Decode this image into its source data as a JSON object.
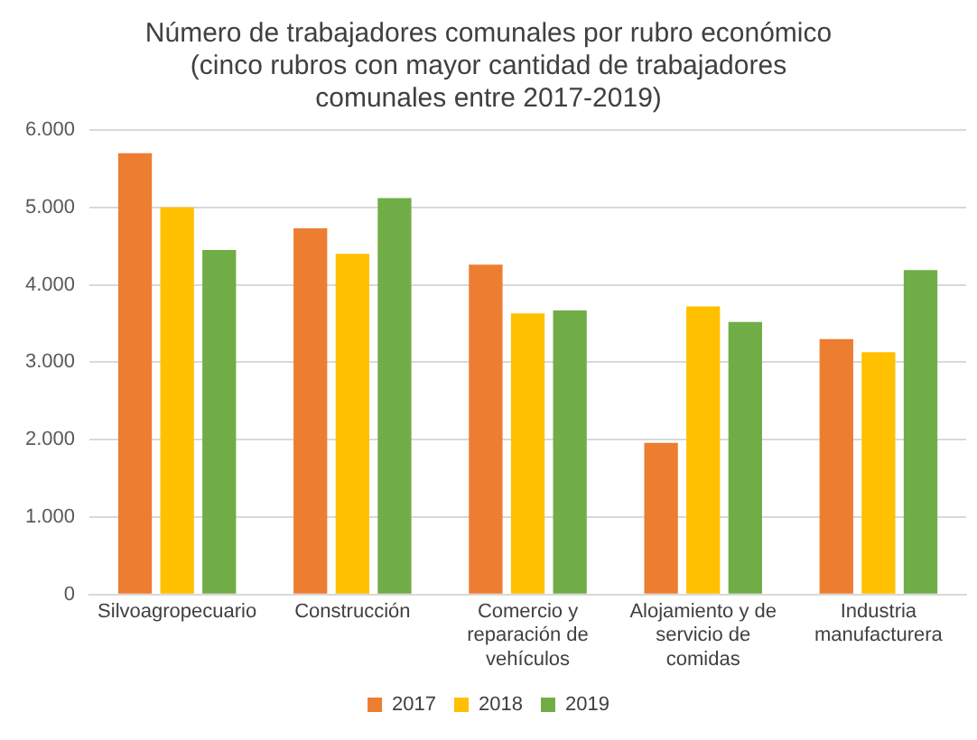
{
  "chart_data": {
    "type": "bar",
    "title": "Número de trabajadores comunales por rubro económico (cinco rubros con mayor cantidad de trabajadores comunales entre 2017-2019)",
    "categories": [
      "Silvoagropecuario",
      "Construcción",
      "Comercio y reparación de vehículos",
      "Alojamiento y de servicio de comidas",
      "Industria manufacturera"
    ],
    "series": [
      {
        "name": "2017",
        "color": "#ed7d31",
        "values": [
          5700,
          4730,
          4260,
          1960,
          3300
        ]
      },
      {
        "name": "2018",
        "color": "#ffc000",
        "values": [
          5000,
          4400,
          3630,
          3720,
          3130
        ]
      },
      {
        "name": "2019",
        "color": "#70ad47",
        "values": [
          4450,
          5120,
          3670,
          3520,
          4190
        ]
      }
    ],
    "ylim": [
      0,
      6000
    ],
    "yticks": [
      {
        "value": 0,
        "label": "0"
      },
      {
        "value": 1000,
        "label": "1.000"
      },
      {
        "value": 2000,
        "label": "2.000"
      },
      {
        "value": 3000,
        "label": "3.000"
      },
      {
        "value": 4000,
        "label": "4.000"
      },
      {
        "value": 5000,
        "label": "5.000"
      },
      {
        "value": 6000,
        "label": "6.000"
      }
    ],
    "grid": "y",
    "legend": "bottom"
  }
}
